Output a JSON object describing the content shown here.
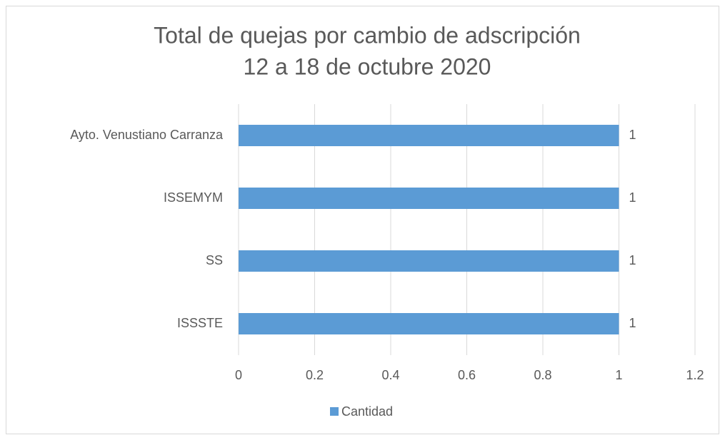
{
  "chart_data": {
    "type": "bar",
    "orientation": "horizontal",
    "title": "Total de quejas por cambio de adscripción",
    "subtitle": "12 a 18 de octubre 2020",
    "categories": [
      "Ayto. Venustiano Carranza",
      "ISSEMYM",
      "SS",
      "ISSSTE"
    ],
    "series": [
      {
        "name": "Cantidad",
        "color": "#5b9bd5",
        "values": [
          1,
          1,
          1,
          1
        ]
      }
    ],
    "xlim": [
      0,
      1.2
    ],
    "xticks": [
      0,
      0.2,
      0.4,
      0.6,
      0.8,
      1,
      1.2
    ],
    "grid": true,
    "legend": "bottom"
  }
}
